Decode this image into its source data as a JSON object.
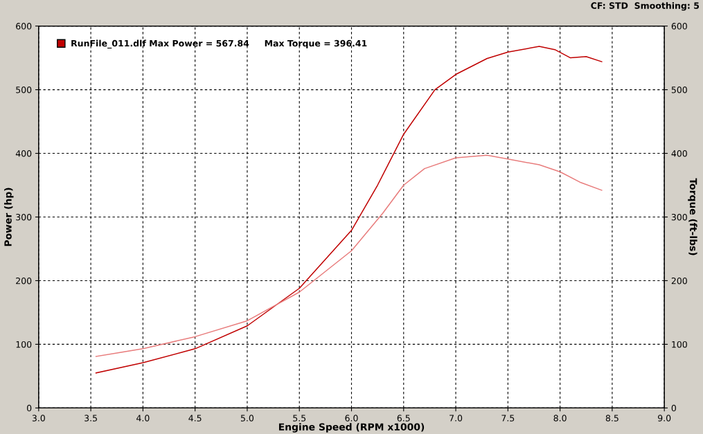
{
  "chart_data": {
    "type": "line",
    "xlabel": "Engine Speed (RPM x1000)",
    "ylabel": "Power (hp)",
    "y2label": "Torque (ft-lbs)",
    "annotations": [
      "CF: STD  Smoothing: 5"
    ],
    "xlim": [
      3.0,
      9.0
    ],
    "xticks": [
      {
        "value": 3.0,
        "label": "3.0"
      },
      {
        "value": 3.5,
        "label": "3.5"
      },
      {
        "value": 4.0,
        "label": "4.0"
      },
      {
        "value": 4.5,
        "label": "4.5"
      },
      {
        "value": 5.0,
        "label": "5.0"
      },
      {
        "value": 5.5,
        "label": "5.5"
      },
      {
        "value": 6.0,
        "label": "6.0"
      },
      {
        "value": 6.5,
        "label": "6.5"
      },
      {
        "value": 7.0,
        "label": "7.0"
      },
      {
        "value": 7.5,
        "label": "7.5"
      },
      {
        "value": 8.0,
        "label": "8.0"
      },
      {
        "value": 8.5,
        "label": "8.5"
      },
      {
        "value": 9.0,
        "label": "9.0"
      }
    ],
    "ylim": [
      0,
      600
    ],
    "yticks": [
      0,
      100,
      200,
      300,
      400,
      500,
      600
    ],
    "y2lim": [
      0,
      600
    ],
    "y2ticks": [
      0,
      100,
      200,
      300,
      400,
      500,
      600
    ],
    "grid": true,
    "legend": "top left",
    "marker": "none",
    "line_style": "solid",
    "series": [
      {
        "name": "RunFile_011.dlf Max Power = 567.84     Max Torque = 396.41",
        "color": "#c00000",
        "x": [
          3.55,
          4.0,
          4.5,
          5.0,
          5.5,
          6.0,
          6.25,
          6.5,
          6.8,
          7.0,
          7.3,
          7.5,
          7.8,
          7.95,
          8.1,
          8.25,
          8.4
        ],
        "values": [
          55,
          71,
          93,
          129,
          188,
          279,
          350,
          430,
          500,
          524,
          549,
          559,
          568,
          563,
          550,
          552,
          544
        ]
      },
      {
        "color": "#e87c7c",
        "x": [
          3.55,
          4.0,
          4.5,
          5.0,
          5.5,
          6.0,
          6.3,
          6.5,
          6.7,
          7.0,
          7.3,
          7.5,
          7.8,
          8.0,
          8.2,
          8.4
        ],
        "values": [
          81,
          93,
          112,
          137,
          182,
          247,
          306,
          350,
          376,
          393,
          397,
          391,
          382,
          371,
          354,
          342
        ]
      }
    ]
  }
}
